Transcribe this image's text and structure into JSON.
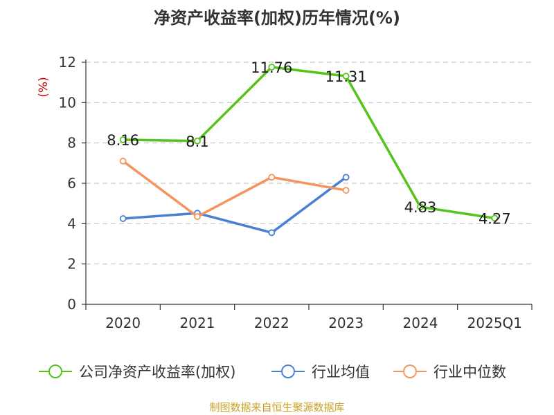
{
  "chart_data": {
    "type": "line",
    "title": "净资产收益率(加权)历年情况(%)",
    "ylabel": "(%)",
    "xlabel": "",
    "categories": [
      "2020",
      "2021",
      "2022",
      "2023",
      "2024",
      "2025Q1"
    ],
    "ylim": [
      0,
      12
    ],
    "yticks": [
      0,
      2,
      4,
      6,
      8,
      10,
      12
    ],
    "grid": true,
    "legend_position": "bottom",
    "series": [
      {
        "name": "公司净资产收益率(加权)",
        "color": "#52c41a",
        "values": [
          8.16,
          8.1,
          11.76,
          11.31,
          4.83,
          4.27
        ],
        "labels": [
          "8.16",
          "8.1",
          "11.76",
          "11.31",
          "4.83",
          "4.27"
        ]
      },
      {
        "name": "行业均值",
        "color": "#4a7fd4",
        "values": [
          4.25,
          4.52,
          3.55,
          6.3,
          null,
          null
        ]
      },
      {
        "name": "行业中位数",
        "color": "#f7935c",
        "values": [
          7.1,
          4.35,
          6.3,
          5.65,
          null,
          null
        ]
      }
    ]
  },
  "source": "制图数据来自恒生聚源数据库"
}
